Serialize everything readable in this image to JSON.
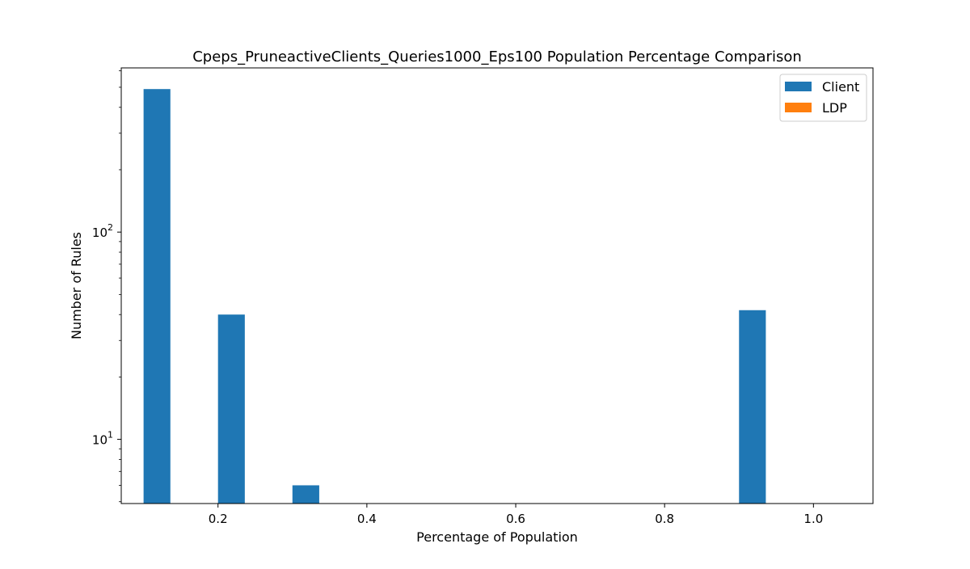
{
  "chart_data": {
    "type": "bar",
    "title": "Cpeps_PruneactiveClients_Queries1000_Eps100 Population Percentage Comparison",
    "xlabel": "Percentage of Population",
    "ylabel": "Number of Rules",
    "yscale": "log",
    "xlim": [
      0.07,
      1.08
    ],
    "ylim": [
      4.9,
      620
    ],
    "x_ticks": [
      {
        "value": 0.2,
        "label": "0.2"
      },
      {
        "value": 0.4,
        "label": "0.4"
      },
      {
        "value": 0.6,
        "label": "0.6"
      },
      {
        "value": 0.8,
        "label": "0.8"
      },
      {
        "value": 1.0,
        "label": "1.0"
      }
    ],
    "y_ticks": [
      {
        "value": 10,
        "base": "10",
        "exp": "1"
      },
      {
        "value": 100,
        "base": "10",
        "exp": "2"
      }
    ],
    "bar_width": 0.036,
    "grid": false,
    "legend_position": "top-right",
    "series": [
      {
        "name": "Client",
        "color": "#1f77b4",
        "bars": [
          {
            "x": 0.1,
            "value": 490
          },
          {
            "x": 0.2,
            "value": 40
          },
          {
            "x": 0.3,
            "value": 6
          },
          {
            "x": 0.9,
            "value": 42
          }
        ]
      },
      {
        "name": "LDP",
        "color": "#ff7f0e",
        "bars": []
      }
    ]
  }
}
